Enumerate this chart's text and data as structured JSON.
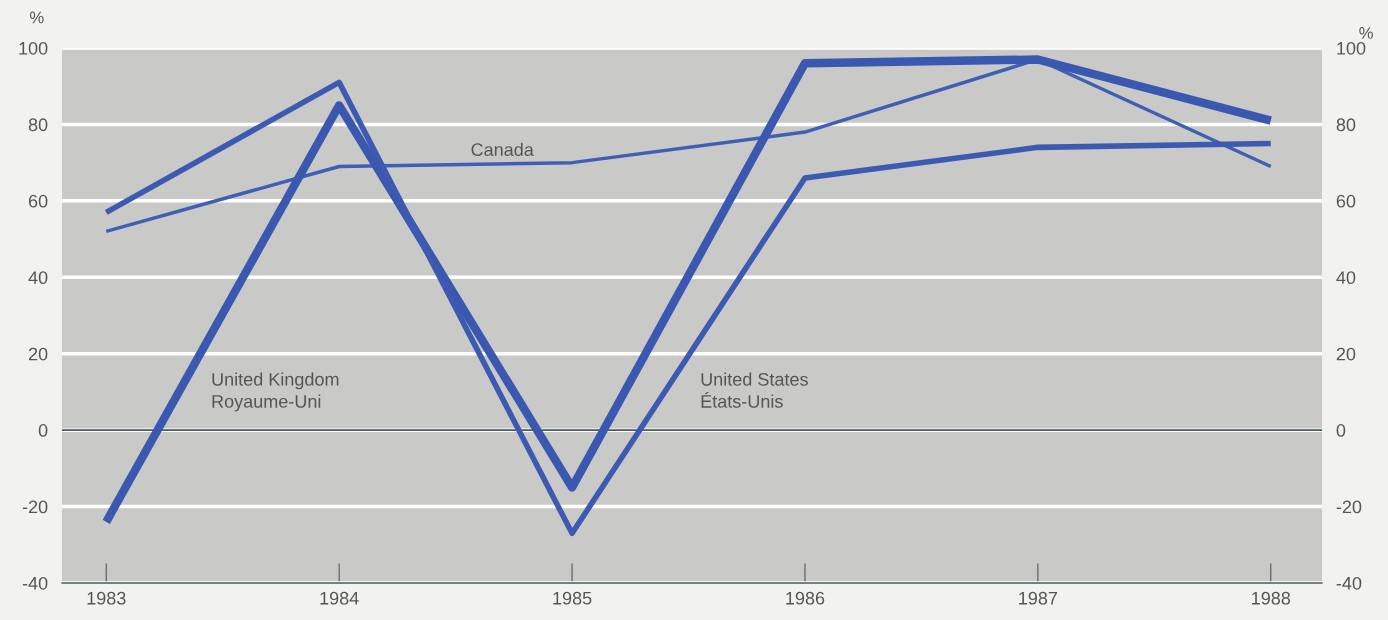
{
  "chart_data": {
    "type": "line",
    "ylabel": "%",
    "y2label": "%",
    "categories": [
      "1983",
      "1984",
      "1985",
      "1986",
      "1987",
      "1988"
    ],
    "series": [
      {
        "name": "Canada",
        "color": "#3f5fb5",
        "values": [
          52,
          69,
          70,
          78,
          97,
          69
        ]
      },
      {
        "name": "United Kingdom\nRoyaume-Uni",
        "color": "#3a58b0",
        "values": [
          -24,
          85,
          -15,
          96,
          97,
          81
        ]
      },
      {
        "name": "United States\nÉtats-Unis",
        "color": "#3c5ab2",
        "values": [
          57,
          91,
          -27,
          66,
          74,
          75
        ]
      }
    ],
    "ylim": [
      -40,
      100
    ],
    "yticks": [
      -40,
      -20,
      0,
      20,
      40,
      60,
      80,
      100
    ],
    "y2lim": [
      -40,
      100
    ],
    "y2ticks": [
      -40,
      -20,
      0,
      20,
      40,
      60,
      80,
      100
    ],
    "ref_lines": [
      {
        "axis": "y",
        "value": 0,
        "color": "#4a5a5a"
      }
    ],
    "grid": "y",
    "legend": false,
    "marker": "none",
    "line_style": "solid"
  }
}
